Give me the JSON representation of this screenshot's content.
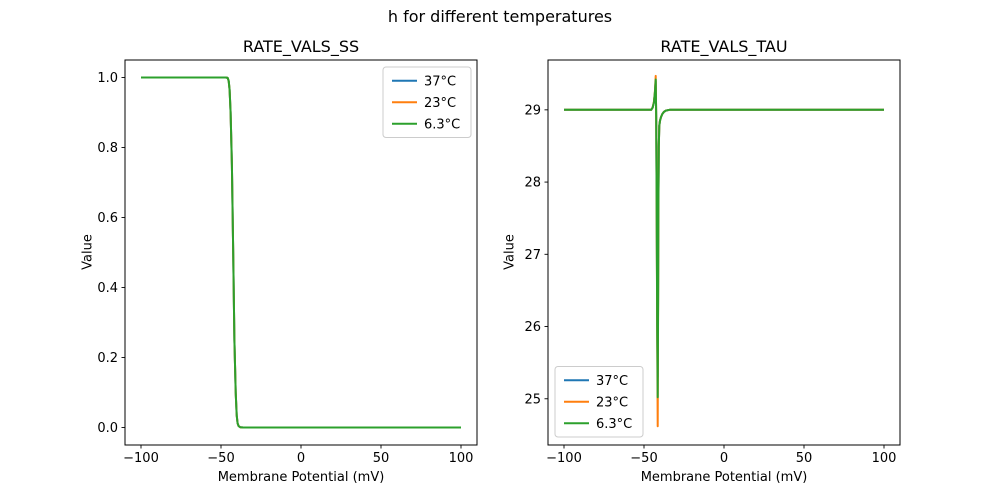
{
  "figure": {
    "title": "h for different temperatures",
    "background": "#ffffff"
  },
  "chart_data": [
    {
      "type": "line",
      "title": "RATE_VALS_SS",
      "xlabel": "Membrane Potential (mV)",
      "ylabel": "Value",
      "xlim": [
        -110,
        110
      ],
      "ylim": [
        -0.05,
        1.05
      ],
      "xticks": [
        -100,
        -50,
        0,
        50,
        100
      ],
      "xtick_labels": [
        "−100",
        "−50",
        "0",
        "50",
        "100"
      ],
      "yticks": [
        0.0,
        0.2,
        0.4,
        0.6,
        0.8,
        1.0
      ],
      "ytick_labels": [
        "0.0",
        "0.2",
        "0.4",
        "0.6",
        "0.8",
        "1.0"
      ],
      "grid": false,
      "legend": {
        "loc": "upper right"
      },
      "series": [
        {
          "name": "37°C",
          "color": "#1f77b4",
          "points": [
            [
              -100,
              1.0
            ],
            [
              -80,
              1.0
            ],
            [
              -60,
              1.0
            ],
            [
              -50,
              1.0
            ],
            [
              -47,
              1.0
            ],
            [
              -45.8,
              0.999
            ],
            [
              -45.2,
              0.99
            ],
            [
              -44.6,
              0.965
            ],
            [
              -44.0,
              0.9
            ],
            [
              -43.2,
              0.75
            ],
            [
              -42.4,
              0.5
            ],
            [
              -41.6,
              0.25
            ],
            [
              -40.8,
              0.1
            ],
            [
              -40.2,
              0.035
            ],
            [
              -39.6,
              0.012
            ],
            [
              -39.0,
              0.004
            ],
            [
              -38.0,
              0.001
            ],
            [
              -36.0,
              0.0
            ],
            [
              -20.0,
              0.0
            ],
            [
              0.0,
              0.0
            ],
            [
              50.0,
              0.0
            ],
            [
              100.0,
              0.0
            ]
          ]
        },
        {
          "name": "23°C",
          "color": "#ff7f0e",
          "points": [
            [
              -100,
              1.0
            ],
            [
              -80,
              1.0
            ],
            [
              -60,
              1.0
            ],
            [
              -50,
              1.0
            ],
            [
              -47,
              1.0
            ],
            [
              -45.8,
              0.999
            ],
            [
              -45.2,
              0.99
            ],
            [
              -44.6,
              0.965
            ],
            [
              -44.0,
              0.9
            ],
            [
              -43.2,
              0.75
            ],
            [
              -42.4,
              0.5
            ],
            [
              -41.6,
              0.25
            ],
            [
              -40.8,
              0.1
            ],
            [
              -40.2,
              0.035
            ],
            [
              -39.6,
              0.012
            ],
            [
              -39.0,
              0.004
            ],
            [
              -38.0,
              0.001
            ],
            [
              -36.0,
              0.0
            ],
            [
              -20.0,
              0.0
            ],
            [
              0.0,
              0.0
            ],
            [
              50.0,
              0.0
            ],
            [
              100.0,
              0.0
            ]
          ]
        },
        {
          "name": "6.3°C",
          "color": "#2ca02c",
          "points": [
            [
              -100,
              1.0
            ],
            [
              -80,
              1.0
            ],
            [
              -60,
              1.0
            ],
            [
              -50,
              1.0
            ],
            [
              -47,
              1.0
            ],
            [
              -45.8,
              0.999
            ],
            [
              -45.2,
              0.99
            ],
            [
              -44.6,
              0.965
            ],
            [
              -44.0,
              0.9
            ],
            [
              -43.2,
              0.75
            ],
            [
              -42.4,
              0.5
            ],
            [
              -41.6,
              0.25
            ],
            [
              -40.8,
              0.1
            ],
            [
              -40.2,
              0.035
            ],
            [
              -39.6,
              0.012
            ],
            [
              -39.0,
              0.004
            ],
            [
              -38.0,
              0.001
            ],
            [
              -36.0,
              0.0
            ],
            [
              -20.0,
              0.0
            ],
            [
              0.0,
              0.0
            ],
            [
              50.0,
              0.0
            ],
            [
              100.0,
              0.0
            ]
          ]
        }
      ]
    },
    {
      "type": "line",
      "title": "RATE_VALS_TAU",
      "xlabel": "Membrane Potential (mV)",
      "ylabel": "Value",
      "xlim": [
        -110,
        110
      ],
      "ylim": [
        24.36,
        29.69
      ],
      "xticks": [
        -100,
        -50,
        0,
        50,
        100
      ],
      "xtick_labels": [
        "−100",
        "−50",
        "0",
        "50",
        "100"
      ],
      "yticks": [
        25,
        26,
        27,
        28,
        29
      ],
      "ytick_labels": [
        "25",
        "26",
        "27",
        "28",
        "29"
      ],
      "grid": false,
      "legend": {
        "loc": "lower left"
      },
      "series": [
        {
          "name": "37°C",
          "color": "#1f77b4",
          "points": [
            [
              -100,
              29
            ],
            [
              -80,
              29
            ],
            [
              -60,
              29
            ],
            [
              -50,
              29
            ],
            [
              -45.5,
              29
            ],
            [
              -44.6,
              29.03
            ],
            [
              -43.8,
              29.1
            ],
            [
              -43.2,
              29.23
            ],
            [
              -42.7,
              29.4
            ],
            [
              -42.35,
              28.9
            ],
            [
              -42.05,
              27.6
            ],
            [
              -41.75,
              26.1
            ],
            [
              -41.45,
              25.3
            ],
            [
              -41.2,
              26.4
            ],
            [
              -41.0,
              27.7
            ],
            [
              -40.75,
              28.5
            ],
            [
              -40.45,
              28.78
            ],
            [
              -40.0,
              28.85
            ],
            [
              -39.4,
              28.9
            ],
            [
              -38.6,
              28.94
            ],
            [
              -37.6,
              28.97
            ],
            [
              -36.4,
              28.99
            ],
            [
              -34,
              29
            ],
            [
              -20,
              29
            ],
            [
              0,
              29
            ],
            [
              50,
              29
            ],
            [
              100,
              29
            ]
          ]
        },
        {
          "name": "23°C",
          "color": "#ff7f0e",
          "points": [
            [
              -100,
              29
            ],
            [
              -80,
              29
            ],
            [
              -60,
              29
            ],
            [
              -50,
              29
            ],
            [
              -45.5,
              29
            ],
            [
              -44.6,
              29.03
            ],
            [
              -43.8,
              29.11
            ],
            [
              -43.2,
              29.25
            ],
            [
              -42.7,
              29.47
            ],
            [
              -42.35,
              28.9
            ],
            [
              -42.05,
              27.5
            ],
            [
              -41.75,
              25.9
            ],
            [
              -41.45,
              24.62
            ],
            [
              -41.2,
              26.3
            ],
            [
              -41.0,
              27.6
            ],
            [
              -40.75,
              28.5
            ],
            [
              -40.45,
              28.78
            ],
            [
              -40.0,
              28.85
            ],
            [
              -39.4,
              28.9
            ],
            [
              -38.6,
              28.94
            ],
            [
              -37.6,
              28.97
            ],
            [
              -36.4,
              28.99
            ],
            [
              -34,
              29
            ],
            [
              -20,
              29
            ],
            [
              0,
              29
            ],
            [
              50,
              29
            ],
            [
              100,
              29
            ]
          ]
        },
        {
          "name": "6.3°C",
          "color": "#2ca02c",
          "points": [
            [
              -100,
              29
            ],
            [
              -80,
              29
            ],
            [
              -60,
              29
            ],
            [
              -50,
              29
            ],
            [
              -45.5,
              29
            ],
            [
              -44.6,
              29.03
            ],
            [
              -43.8,
              29.1
            ],
            [
              -43.2,
              29.24
            ],
            [
              -42.7,
              29.42
            ],
            [
              -42.35,
              28.9
            ],
            [
              -42.05,
              27.55
            ],
            [
              -41.75,
              26.0
            ],
            [
              -41.45,
              25.02
            ],
            [
              -41.2,
              26.35
            ],
            [
              -41.0,
              27.65
            ],
            [
              -40.75,
              28.5
            ],
            [
              -40.45,
              28.78
            ],
            [
              -40.0,
              28.85
            ],
            [
              -39.4,
              28.9
            ],
            [
              -38.6,
              28.94
            ],
            [
              -37.6,
              28.97
            ],
            [
              -36.4,
              28.99
            ],
            [
              -34,
              29
            ],
            [
              -20,
              29
            ],
            [
              0,
              29
            ],
            [
              50,
              29
            ],
            [
              100,
              29
            ]
          ]
        }
      ]
    }
  ]
}
